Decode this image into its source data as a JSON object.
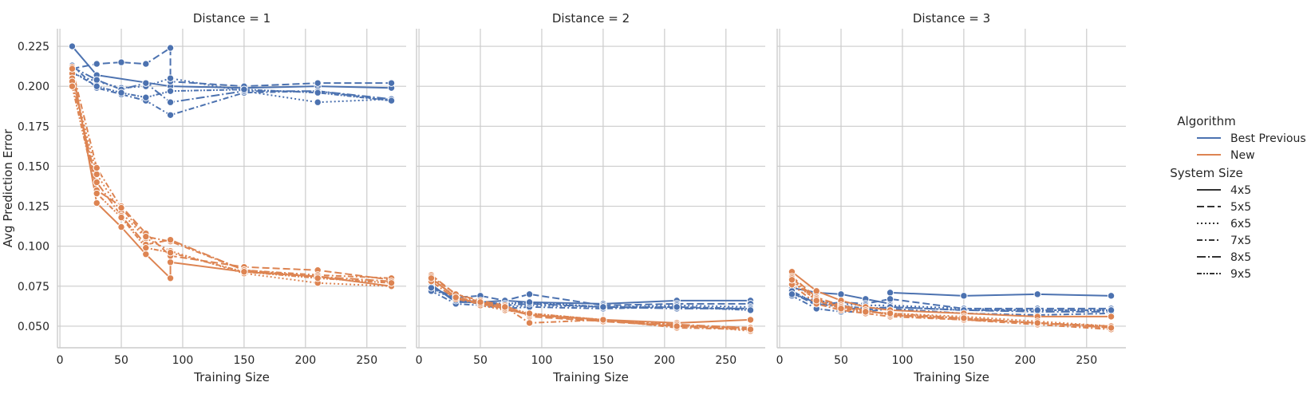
{
  "chart_data": {
    "type": "line",
    "ylabel": "Avg Prediction Error",
    "xlabel": "Training Size",
    "xlim": [
      -2,
      282
    ],
    "ylim": [
      0.0365,
      0.236
    ],
    "xticks": [
      0,
      50,
      100,
      150,
      200,
      250
    ],
    "yticks": [
      0.05,
      0.075,
      0.1,
      0.125,
      0.15,
      0.175,
      0.2,
      0.225
    ],
    "ytick_labels": [
      "0.050",
      "0.075",
      "0.100",
      "0.125",
      "0.150",
      "0.175",
      "0.200",
      "0.225"
    ],
    "grid": true,
    "colors": {
      "Best Previous": "#4c72b0",
      "New": "#dd8452"
    },
    "legend": {
      "placement": "right",
      "hue_title": "Algorithm",
      "hue_items": [
        "Best Previous",
        "New"
      ],
      "style_title": "System Size",
      "style_items": [
        "4x5",
        "5x5",
        "6x5",
        "7x5",
        "8x5",
        "9x5"
      ]
    },
    "panels": [
      {
        "title": "Distance = 1",
        "series": [
          {
            "algorithm": "Best Previous",
            "system_size": "4x5",
            "x": [
              10,
              30,
              90,
              150,
              210,
              270
            ],
            "y": [
              0.225,
              0.207,
              0.2,
              0.199,
              0.2,
              0.199
            ]
          },
          {
            "algorithm": "Best Previous",
            "system_size": "5x5",
            "x": [
              10,
              30,
              50,
              70,
              90,
              90,
              150,
              210,
              270
            ],
            "y": [
              0.211,
              0.214,
              0.215,
              0.214,
              0.224,
              0.203,
              0.2,
              0.202,
              0.202
            ]
          },
          {
            "algorithm": "Best Previous",
            "system_size": "6x5",
            "x": [
              10,
              30,
              50,
              70,
              90,
              150,
              210,
              270
            ],
            "y": [
              0.208,
              0.203,
              0.199,
              0.2,
              0.205,
              0.197,
              0.19,
              0.192
            ]
          },
          {
            "algorithm": "Best Previous",
            "system_size": "7x5",
            "x": [
              10,
              30,
              50,
              70,
              90,
              150,
              210,
              270
            ],
            "y": [
              0.213,
              0.199,
              0.195,
              0.191,
              0.182,
              0.196,
              0.197,
              0.191
            ]
          },
          {
            "algorithm": "Best Previous",
            "system_size": "8x5",
            "x": [
              10,
              30,
              50,
              70,
              90,
              150,
              210,
              270
            ],
            "y": [
              0.212,
              0.204,
              0.198,
              0.202,
              0.19,
              0.197,
              0.197,
              0.192
            ]
          },
          {
            "algorithm": "Best Previous",
            "system_size": "9x5",
            "x": [
              10,
              30,
              50,
              70,
              90,
              150,
              210,
              270
            ],
            "y": [
              0.209,
              0.2,
              0.196,
              0.193,
              0.197,
              0.198,
              0.196,
              0.191
            ]
          },
          {
            "algorithm": "New",
            "system_size": "4x5",
            "x": [
              10,
              30,
              50,
              70,
              90,
              90,
              150,
              210,
              270
            ],
            "y": [
              0.212,
              0.127,
              0.112,
              0.095,
              0.08,
              0.09,
              0.084,
              0.081,
              0.075
            ]
          },
          {
            "algorithm": "New",
            "system_size": "5x5",
            "x": [
              10,
              30,
              50,
              70,
              90,
              150,
              210,
              270
            ],
            "y": [
              0.208,
              0.135,
              0.125,
              0.108,
              0.094,
              0.087,
              0.085,
              0.079
            ]
          },
          {
            "algorithm": "New",
            "system_size": "6x5",
            "x": [
              10,
              30,
              50,
              70,
              90,
              150,
              210,
              270
            ],
            "y": [
              0.205,
              0.145,
              0.121,
              0.105,
              0.097,
              0.083,
              0.077,
              0.075
            ]
          },
          {
            "algorithm": "New",
            "system_size": "7x5",
            "x": [
              10,
              30,
              50,
              70,
              90,
              150,
              210,
              270
            ],
            "y": [
              0.211,
              0.149,
              0.124,
              0.106,
              0.103,
              0.085,
              0.082,
              0.08
            ]
          },
          {
            "algorithm": "New",
            "system_size": "8x5",
            "x": [
              10,
              30,
              50,
              70,
              90,
              150,
              210,
              270
            ],
            "y": [
              0.203,
              0.14,
              0.119,
              0.101,
              0.104,
              0.085,
              0.081,
              0.078
            ]
          },
          {
            "algorithm": "New",
            "system_size": "9x5",
            "x": [
              10,
              30,
              50,
              70,
              90,
              150,
              210,
              270
            ],
            "y": [
              0.2,
              0.133,
              0.118,
              0.099,
              0.096,
              0.084,
              0.08,
              0.077
            ]
          }
        ]
      },
      {
        "title": "Distance = 2",
        "series": [
          {
            "algorithm": "Best Previous",
            "system_size": "4x5",
            "x": [
              10,
              30,
              50,
              70,
              90,
              150,
              210,
              270
            ],
            "y": [
              0.076,
              0.065,
              0.065,
              0.066,
              0.065,
              0.064,
              0.066,
              0.066
            ]
          },
          {
            "algorithm": "Best Previous",
            "system_size": "5x5",
            "x": [
              10,
              30,
              50,
              70,
              90,
              150,
              210,
              270
            ],
            "y": [
              0.074,
              0.068,
              0.069,
              0.066,
              0.07,
              0.063,
              0.064,
              0.064
            ]
          },
          {
            "algorithm": "Best Previous",
            "system_size": "6x5",
            "x": [
              10,
              30,
              50,
              70,
              90,
              150,
              210,
              270
            ],
            "y": [
              0.073,
              0.067,
              0.064,
              0.062,
              0.063,
              0.062,
              0.063,
              0.062
            ]
          },
          {
            "algorithm": "Best Previous",
            "system_size": "7x5",
            "x": [
              10,
              30,
              50,
              70,
              90,
              150,
              210,
              270
            ],
            "y": [
              0.072,
              0.064,
              0.063,
              0.061,
              0.062,
              0.061,
              0.062,
              0.061
            ]
          },
          {
            "algorithm": "Best Previous",
            "system_size": "8x5",
            "x": [
              10,
              30,
              50,
              70,
              90,
              150,
              210,
              270
            ],
            "y": [
              0.075,
              0.066,
              0.064,
              0.063,
              0.064,
              0.062,
              0.061,
              0.061
            ]
          },
          {
            "algorithm": "Best Previous",
            "system_size": "9x5",
            "x": [
              10,
              30,
              50,
              70,
              90,
              150,
              210,
              270
            ],
            "y": [
              0.074,
              0.067,
              0.065,
              0.064,
              0.065,
              0.062,
              0.062,
              0.06
            ]
          },
          {
            "algorithm": "New",
            "system_size": "4x5",
            "x": [
              10,
              30,
              50,
              70,
              90,
              150,
              210,
              270
            ],
            "y": [
              0.08,
              0.068,
              0.064,
              0.061,
              0.057,
              0.054,
              0.052,
              0.054
            ]
          },
          {
            "algorithm": "New",
            "system_size": "5x5",
            "x": [
              10,
              30,
              50,
              70,
              90,
              150,
              210,
              270
            ],
            "y": [
              0.082,
              0.07,
              0.066,
              0.063,
              0.056,
              0.053,
              0.05,
              0.049
            ]
          },
          {
            "algorithm": "New",
            "system_size": "6x5",
            "x": [
              10,
              30,
              50,
              70,
              90,
              150,
              210,
              270
            ],
            "y": [
              0.079,
              0.069,
              0.063,
              0.06,
              0.058,
              0.054,
              0.051,
              0.047
            ]
          },
          {
            "algorithm": "New",
            "system_size": "7x5",
            "x": [
              10,
              30,
              50,
              70,
              90,
              150,
              210,
              270
            ],
            "y": [
              0.081,
              0.07,
              0.065,
              0.062,
              0.052,
              0.054,
              0.049,
              0.048
            ]
          },
          {
            "algorithm": "New",
            "system_size": "8x5",
            "x": [
              10,
              30,
              50,
              70,
              90,
              150,
              210,
              270
            ],
            "y": [
              0.078,
              0.067,
              0.064,
              0.061,
              0.057,
              0.053,
              0.051,
              0.049
            ]
          },
          {
            "algorithm": "New",
            "system_size": "9x5",
            "x": [
              10,
              30,
              50,
              70,
              90,
              150,
              210,
              270
            ],
            "y": [
              0.08,
              0.068,
              0.065,
              0.062,
              0.058,
              0.054,
              0.05,
              0.048
            ]
          }
        ]
      },
      {
        "title": "Distance = 3",
        "series": [
          {
            "algorithm": "Best Previous",
            "system_size": "4x5",
            "x": [
              10,
              30,
              50,
              70,
              90,
              90,
              150,
              210,
              270
            ],
            "y": [
              0.074,
              0.071,
              0.07,
              0.067,
              0.064,
              0.071,
              0.069,
              0.07,
              0.069
            ]
          },
          {
            "algorithm": "Best Previous",
            "system_size": "5x5",
            "x": [
              10,
              30,
              50,
              70,
              90,
              150,
              210,
              270
            ],
            "y": [
              0.071,
              0.063,
              0.065,
              0.064,
              0.067,
              0.061,
              0.061,
              0.061
            ]
          },
          {
            "algorithm": "Best Previous",
            "system_size": "6x5",
            "x": [
              10,
              30,
              50,
              70,
              90,
              150,
              210,
              270
            ],
            "y": [
              0.07,
              0.066,
              0.064,
              0.063,
              0.063,
              0.061,
              0.06,
              0.06
            ]
          },
          {
            "algorithm": "Best Previous",
            "system_size": "7x5",
            "x": [
              10,
              30,
              50,
              70,
              90,
              150,
              210,
              270
            ],
            "y": [
              0.069,
              0.061,
              0.059,
              0.059,
              0.061,
              0.058,
              0.057,
              0.058
            ]
          },
          {
            "algorithm": "Best Previous",
            "system_size": "8x5",
            "x": [
              10,
              30,
              50,
              70,
              90,
              150,
              210,
              270
            ],
            "y": [
              0.072,
              0.064,
              0.062,
              0.06,
              0.062,
              0.06,
              0.059,
              0.059
            ]
          },
          {
            "algorithm": "Best Previous",
            "system_size": "9x5",
            "x": [
              10,
              30,
              50,
              70,
              90,
              150,
              210,
              270
            ],
            "y": [
              0.07,
              0.065,
              0.063,
              0.061,
              0.062,
              0.06,
              0.06,
              0.06
            ]
          },
          {
            "algorithm": "New",
            "system_size": "4x5",
            "x": [
              10,
              30,
              50,
              70,
              90,
              150,
              210,
              270
            ],
            "y": [
              0.084,
              0.072,
              0.066,
              0.062,
              0.06,
              0.058,
              0.056,
              0.056
            ]
          },
          {
            "algorithm": "New",
            "system_size": "5x5",
            "x": [
              10,
              30,
              50,
              70,
              90,
              150,
              210,
              270
            ],
            "y": [
              0.081,
              0.068,
              0.063,
              0.06,
              0.057,
              0.054,
              0.052,
              0.049
            ]
          },
          {
            "algorithm": "New",
            "system_size": "6x5",
            "x": [
              10,
              30,
              50,
              70,
              90,
              150,
              210,
              270
            ],
            "y": [
              0.078,
              0.066,
              0.062,
              0.059,
              0.058,
              0.056,
              0.053,
              0.05
            ]
          },
          {
            "algorithm": "New",
            "system_size": "7x5",
            "x": [
              10,
              30,
              50,
              70,
              90,
              150,
              210,
              270
            ],
            "y": [
              0.076,
              0.064,
              0.06,
              0.058,
              0.056,
              0.054,
              0.051,
              0.048
            ]
          },
          {
            "algorithm": "New",
            "system_size": "8x5",
            "x": [
              10,
              30,
              50,
              70,
              90,
              150,
              210,
              270
            ],
            "y": [
              0.08,
              0.067,
              0.062,
              0.06,
              0.057,
              0.055,
              0.052,
              0.05
            ]
          },
          {
            "algorithm": "New",
            "system_size": "9x5",
            "x": [
              10,
              30,
              50,
              70,
              90,
              150,
              210,
              270
            ],
            "y": [
              0.079,
              0.066,
              0.061,
              0.059,
              0.058,
              0.055,
              0.052,
              0.049
            ]
          }
        ]
      }
    ]
  }
}
